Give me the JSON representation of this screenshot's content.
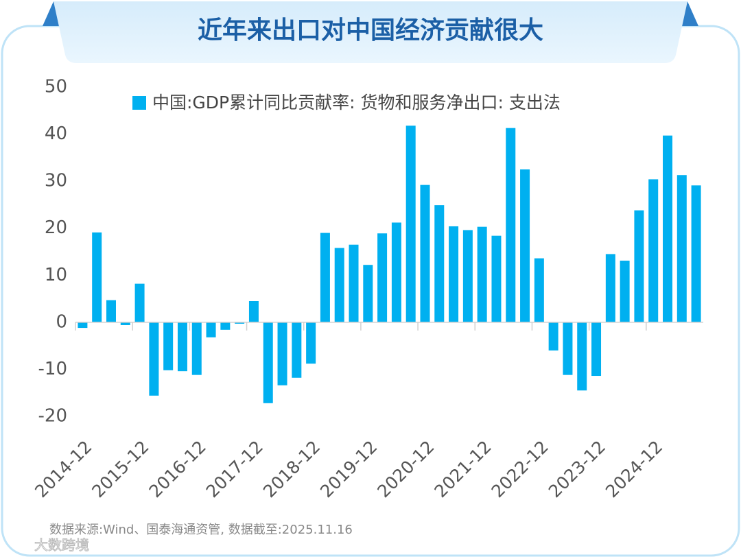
{
  "chart_data": {
    "type": "bar",
    "title": "近年来出口对中国经济贡献很大",
    "series": [
      {
        "name": "中国:GDP累计同比贡献率: 货物和服务净出口: 支出法",
        "color": "#00b0f0",
        "values": [
          -1.2,
          19.1,
          4.7,
          -0.6,
          8.2,
          -15.6,
          -10.2,
          -10.4,
          -11.2,
          -3.2,
          -1.6,
          -0.3,
          4.5,
          -17.2,
          -13.4,
          -11.8,
          -8.8,
          19.0,
          15.8,
          16.5,
          12.2,
          18.9,
          21.2,
          41.8,
          29.2,
          24.9,
          20.4,
          19.6,
          20.3,
          18.4,
          41.3,
          32.5,
          13.6,
          -6.0,
          -11.2,
          -14.5,
          -11.4,
          14.5,
          13.1,
          23.8,
          30.4,
          39.7,
          31.3,
          29.1
        ]
      }
    ],
    "categories": [
      "2014-12",
      null,
      null,
      null,
      "2015-12",
      null,
      null,
      null,
      "2016-12",
      null,
      null,
      null,
      "2017-12",
      null,
      null,
      null,
      "2018-12",
      null,
      null,
      null,
      "2019-12",
      null,
      null,
      null,
      "2020-12",
      null,
      null,
      null,
      "2021-12",
      null,
      null,
      null,
      "2022-12",
      null,
      null,
      null,
      "2023-12",
      null,
      null,
      null,
      "2024-12",
      null,
      null,
      null
    ],
    "ylim": [
      -20,
      50
    ],
    "yticks": [
      -20,
      -10,
      0,
      10,
      20,
      30,
      40,
      50
    ],
    "grid": false,
    "source": "数据来源:Wind、国泰海通资管, 数据截至:2025.11.16",
    "watermark": "大数跨境"
  }
}
